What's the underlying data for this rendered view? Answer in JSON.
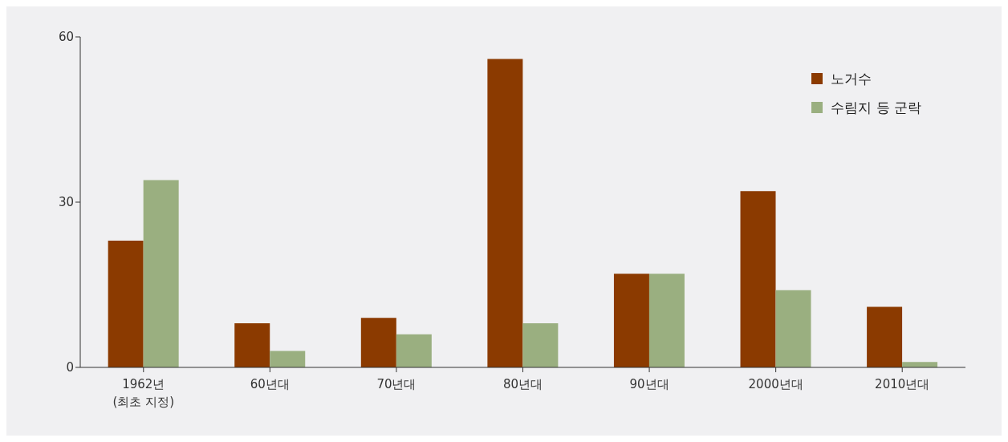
{
  "chart_data": {
    "type": "bar",
    "categories": [
      "1962년\n(최초 지정)",
      "60년대",
      "70년대",
      "80년대",
      "90년대",
      "2000년대",
      "2010년대"
    ],
    "series": [
      {
        "name": "노거수",
        "color": "#8b3a00",
        "values": [
          23,
          8,
          9,
          56,
          17,
          32,
          11
        ]
      },
      {
        "name": "수림지 등 군락",
        "color": "#9aaf80",
        "values": [
          34,
          3,
          6,
          8,
          17,
          14,
          1
        ]
      }
    ],
    "ylim": [
      0,
      60
    ],
    "yticks": [
      0,
      30,
      60
    ],
    "legend": "top right"
  }
}
